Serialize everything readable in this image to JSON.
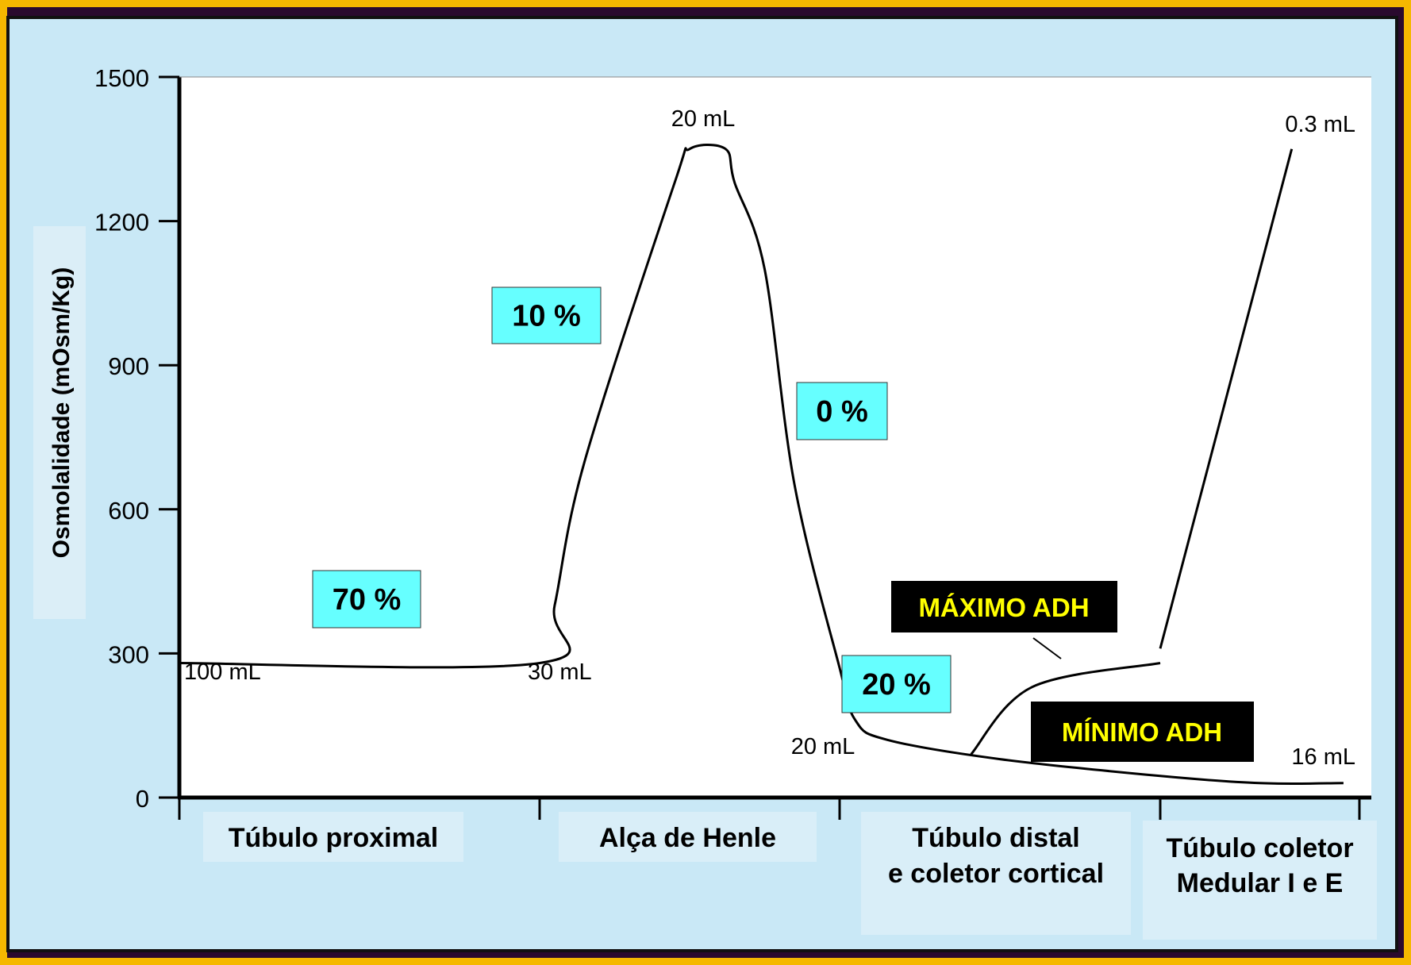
{
  "chart_data": {
    "type": "line",
    "ylabel": "Osmolalidade (mOsm/Kg)",
    "ylim": [
      0,
      1500
    ],
    "yticks": [
      "0",
      "300",
      "600",
      "900",
      "1200",
      "1500"
    ],
    "segments": [
      "Túbulo proximal",
      "Alça de Henle",
      "Túbulo distal\ne coletor cortical",
      "Túbulo coletor\nMedular I e E"
    ],
    "series": [
      {
        "role": "main",
        "points": [
          [
            0.0,
            280
          ],
          [
            1.0,
            280
          ],
          [
            1.05,
            400
          ],
          [
            1.15,
            700
          ],
          [
            1.45,
            1280
          ],
          [
            1.5,
            1350
          ],
          [
            1.62,
            1350
          ],
          [
            1.65,
            1280
          ],
          [
            1.75,
            1100
          ],
          [
            1.85,
            650
          ],
          [
            2.0,
            270
          ],
          [
            2.05,
            160
          ],
          [
            2.15,
            120
          ],
          [
            2.5,
            80
          ],
          [
            3.0,
            45
          ],
          [
            3.5,
            30
          ],
          [
            3.92,
            30
          ]
        ]
      },
      {
        "role": "max-adh",
        "points": [
          [
            2.41,
            90
          ],
          [
            2.6,
            230
          ],
          [
            3.0,
            280
          ]
        ]
      },
      {
        "role": "max-adh-medullary",
        "points": [
          [
            3.0,
            310
          ],
          [
            3.66,
            1350
          ]
        ]
      }
    ],
    "volume_labels": [
      "100 mL",
      "30 mL",
      "20 mL",
      "20 mL",
      "0.3 mL",
      "16 mL"
    ],
    "percent_boxes": [
      "70 %",
      "10 %",
      "0 %",
      "20 %"
    ],
    "callouts": {
      "max": "MÁXIMO ADH",
      "min": "MÍNIMO ADH"
    },
    "colors": {
      "frame": "#f5b800",
      "background": "#c9e8f6",
      "plot_area": "#ffffff",
      "box_fill": "#66ffff",
      "callout_bg": "#000000",
      "callout_text": "#ffff00",
      "line": "#000000"
    }
  }
}
